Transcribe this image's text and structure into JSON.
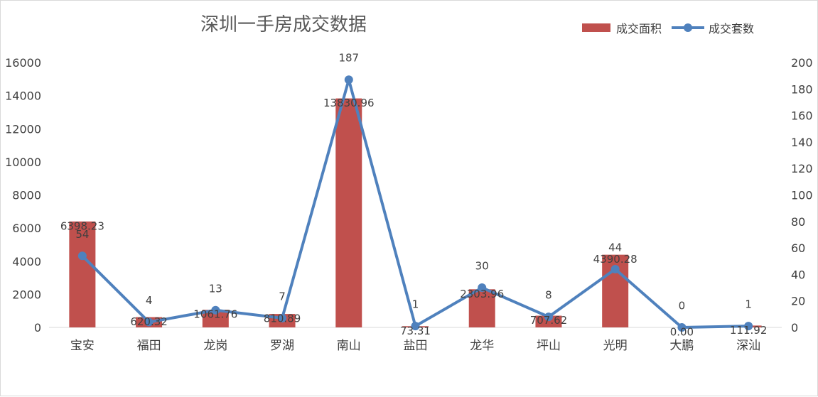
{
  "chart_data": {
    "type": "bar",
    "title": "深圳一手房成交数据",
    "categories": [
      "宝安",
      "福田",
      "龙岗",
      "罗湖",
      "南山",
      "盐田",
      "龙华",
      "坪山",
      "光明",
      "大鹏",
      "深汕"
    ],
    "series": [
      {
        "name": "成交面积",
        "type": "bar",
        "axis": "left",
        "color": "#c0504d",
        "values": [
          6398.23,
          620.32,
          1061.76,
          810.89,
          13830.96,
          73.31,
          2303.96,
          707.62,
          4390.28,
          0.0,
          111.92
        ],
        "labels": [
          "6398.23",
          "620.32",
          "1061.76",
          "810.89",
          "13830.96",
          "73.31",
          "2303.96",
          "707.62",
          "4390.28",
          "0.00",
          "111.92"
        ]
      },
      {
        "name": "成交套数",
        "type": "line",
        "axis": "right",
        "color": "#4f81bd",
        "values": [
          54,
          4,
          13,
          7,
          187,
          1,
          30,
          8,
          44,
          0,
          1
        ],
        "labels": [
          "54",
          "4",
          "13",
          "7",
          "187",
          "1",
          "30",
          "8",
          "44",
          "0",
          "1"
        ]
      }
    ],
    "y_left": {
      "min": 0,
      "max": 16000,
      "ticks": [
        "0",
        "2000",
        "4000",
        "6000",
        "8000",
        "10000",
        "12000",
        "14000",
        "16000"
      ]
    },
    "y_right": {
      "min": 0,
      "max": 200,
      "ticks": [
        "0",
        "20",
        "40",
        "60",
        "80",
        "100",
        "120",
        "140",
        "160",
        "180",
        "200"
      ]
    },
    "grid": false,
    "legend": "top-right"
  }
}
